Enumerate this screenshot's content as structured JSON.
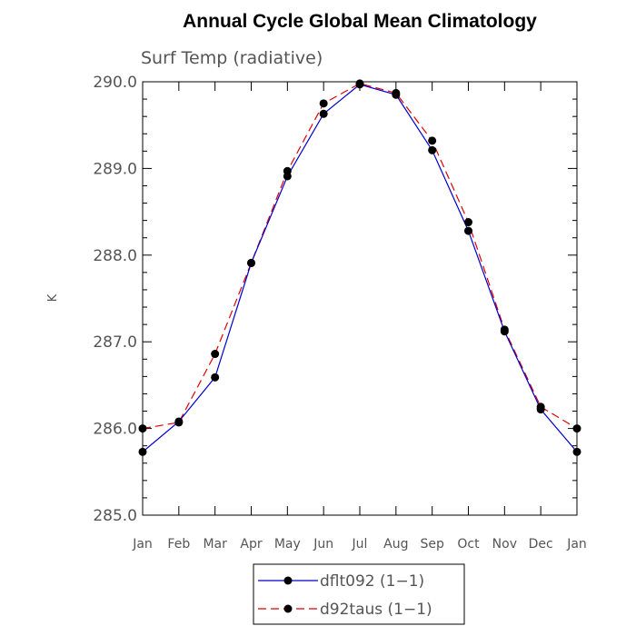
{
  "chart_data": {
    "type": "line",
    "title": "Annual Cycle Global Mean Climatology",
    "subtitle": "Surf Temp (radiative)",
    "xlabel": "",
    "ylabel": "K",
    "categories": [
      "Jan",
      "Feb",
      "Mar",
      "Apr",
      "May",
      "Jun",
      "Jul",
      "Aug",
      "Sep",
      "Oct",
      "Nov",
      "Dec",
      "Jan"
    ],
    "ylim": [
      285.0,
      290.0
    ],
    "yticks": [
      285.0,
      286.0,
      287.0,
      288.0,
      289.0,
      290.0
    ],
    "ytick_labels": [
      "285.0",
      "286.0",
      "287.0",
      "288.0",
      "289.0",
      "290.0"
    ],
    "y_minor_step": 0.2,
    "grid": false,
    "legend_position": "bottom-center",
    "series": [
      {
        "name": "dflt092 (1−1)",
        "color": "#0000cc",
        "dash": "solid",
        "values": [
          285.73,
          286.08,
          286.59,
          287.91,
          288.91,
          289.63,
          289.97,
          289.85,
          289.21,
          288.28,
          287.12,
          286.22,
          285.73
        ]
      },
      {
        "name": "d92taus (1−1)",
        "color": "#dd0000",
        "dash": "dashed",
        "values": [
          286.0,
          286.07,
          286.86,
          287.91,
          288.97,
          289.75,
          289.98,
          289.87,
          289.32,
          288.38,
          287.14,
          286.25,
          286.0
        ]
      }
    ]
  }
}
